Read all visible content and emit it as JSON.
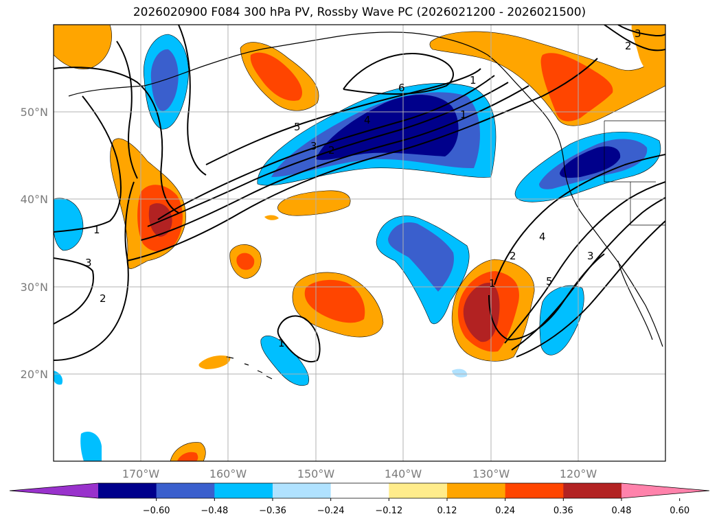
{
  "title": "2026020900 F084 300 hPa PV, Rossby Wave PC (2026021200 - 2026021500)",
  "map": {
    "lat_labels": [
      "50°N",
      "40°N",
      "30°N",
      "20°N"
    ],
    "lon_labels": [
      "170°W",
      "160°W",
      "150°W",
      "140°W",
      "130°W",
      "120°W"
    ],
    "contour_labels": [
      "6",
      "5",
      "4",
      "3",
      "2",
      "1",
      "1",
      "3",
      "2",
      "1",
      "1",
      "2",
      "4",
      "5",
      "3",
      "2",
      "3",
      "1"
    ]
  },
  "colorbar": {
    "tick_labels": [
      "−0.60",
      "−0.48",
      "−0.36",
      "−0.24",
      "−0.12",
      "0.12",
      "0.24",
      "0.36",
      "0.48",
      "0.60"
    ],
    "colors": [
      "#9932cc",
      "#00008b",
      "#3a5fcd",
      "#00bfff",
      "#b0e2ff",
      "#ffffff",
      "#ffec8b",
      "#ffa500",
      "#ff4500",
      "#b22222",
      "#ff82ab"
    ]
  },
  "fill_colors": {
    "neg_high": "#00008b",
    "neg_mid": "#3a5fcd",
    "neg_low": "#00bfff",
    "neg_faint": "#b0e2ff",
    "pos_faint": "#ffec8b",
    "pos_low": "#ffa500",
    "pos_mid": "#ff4500",
    "pos_high": "#b22222"
  }
}
